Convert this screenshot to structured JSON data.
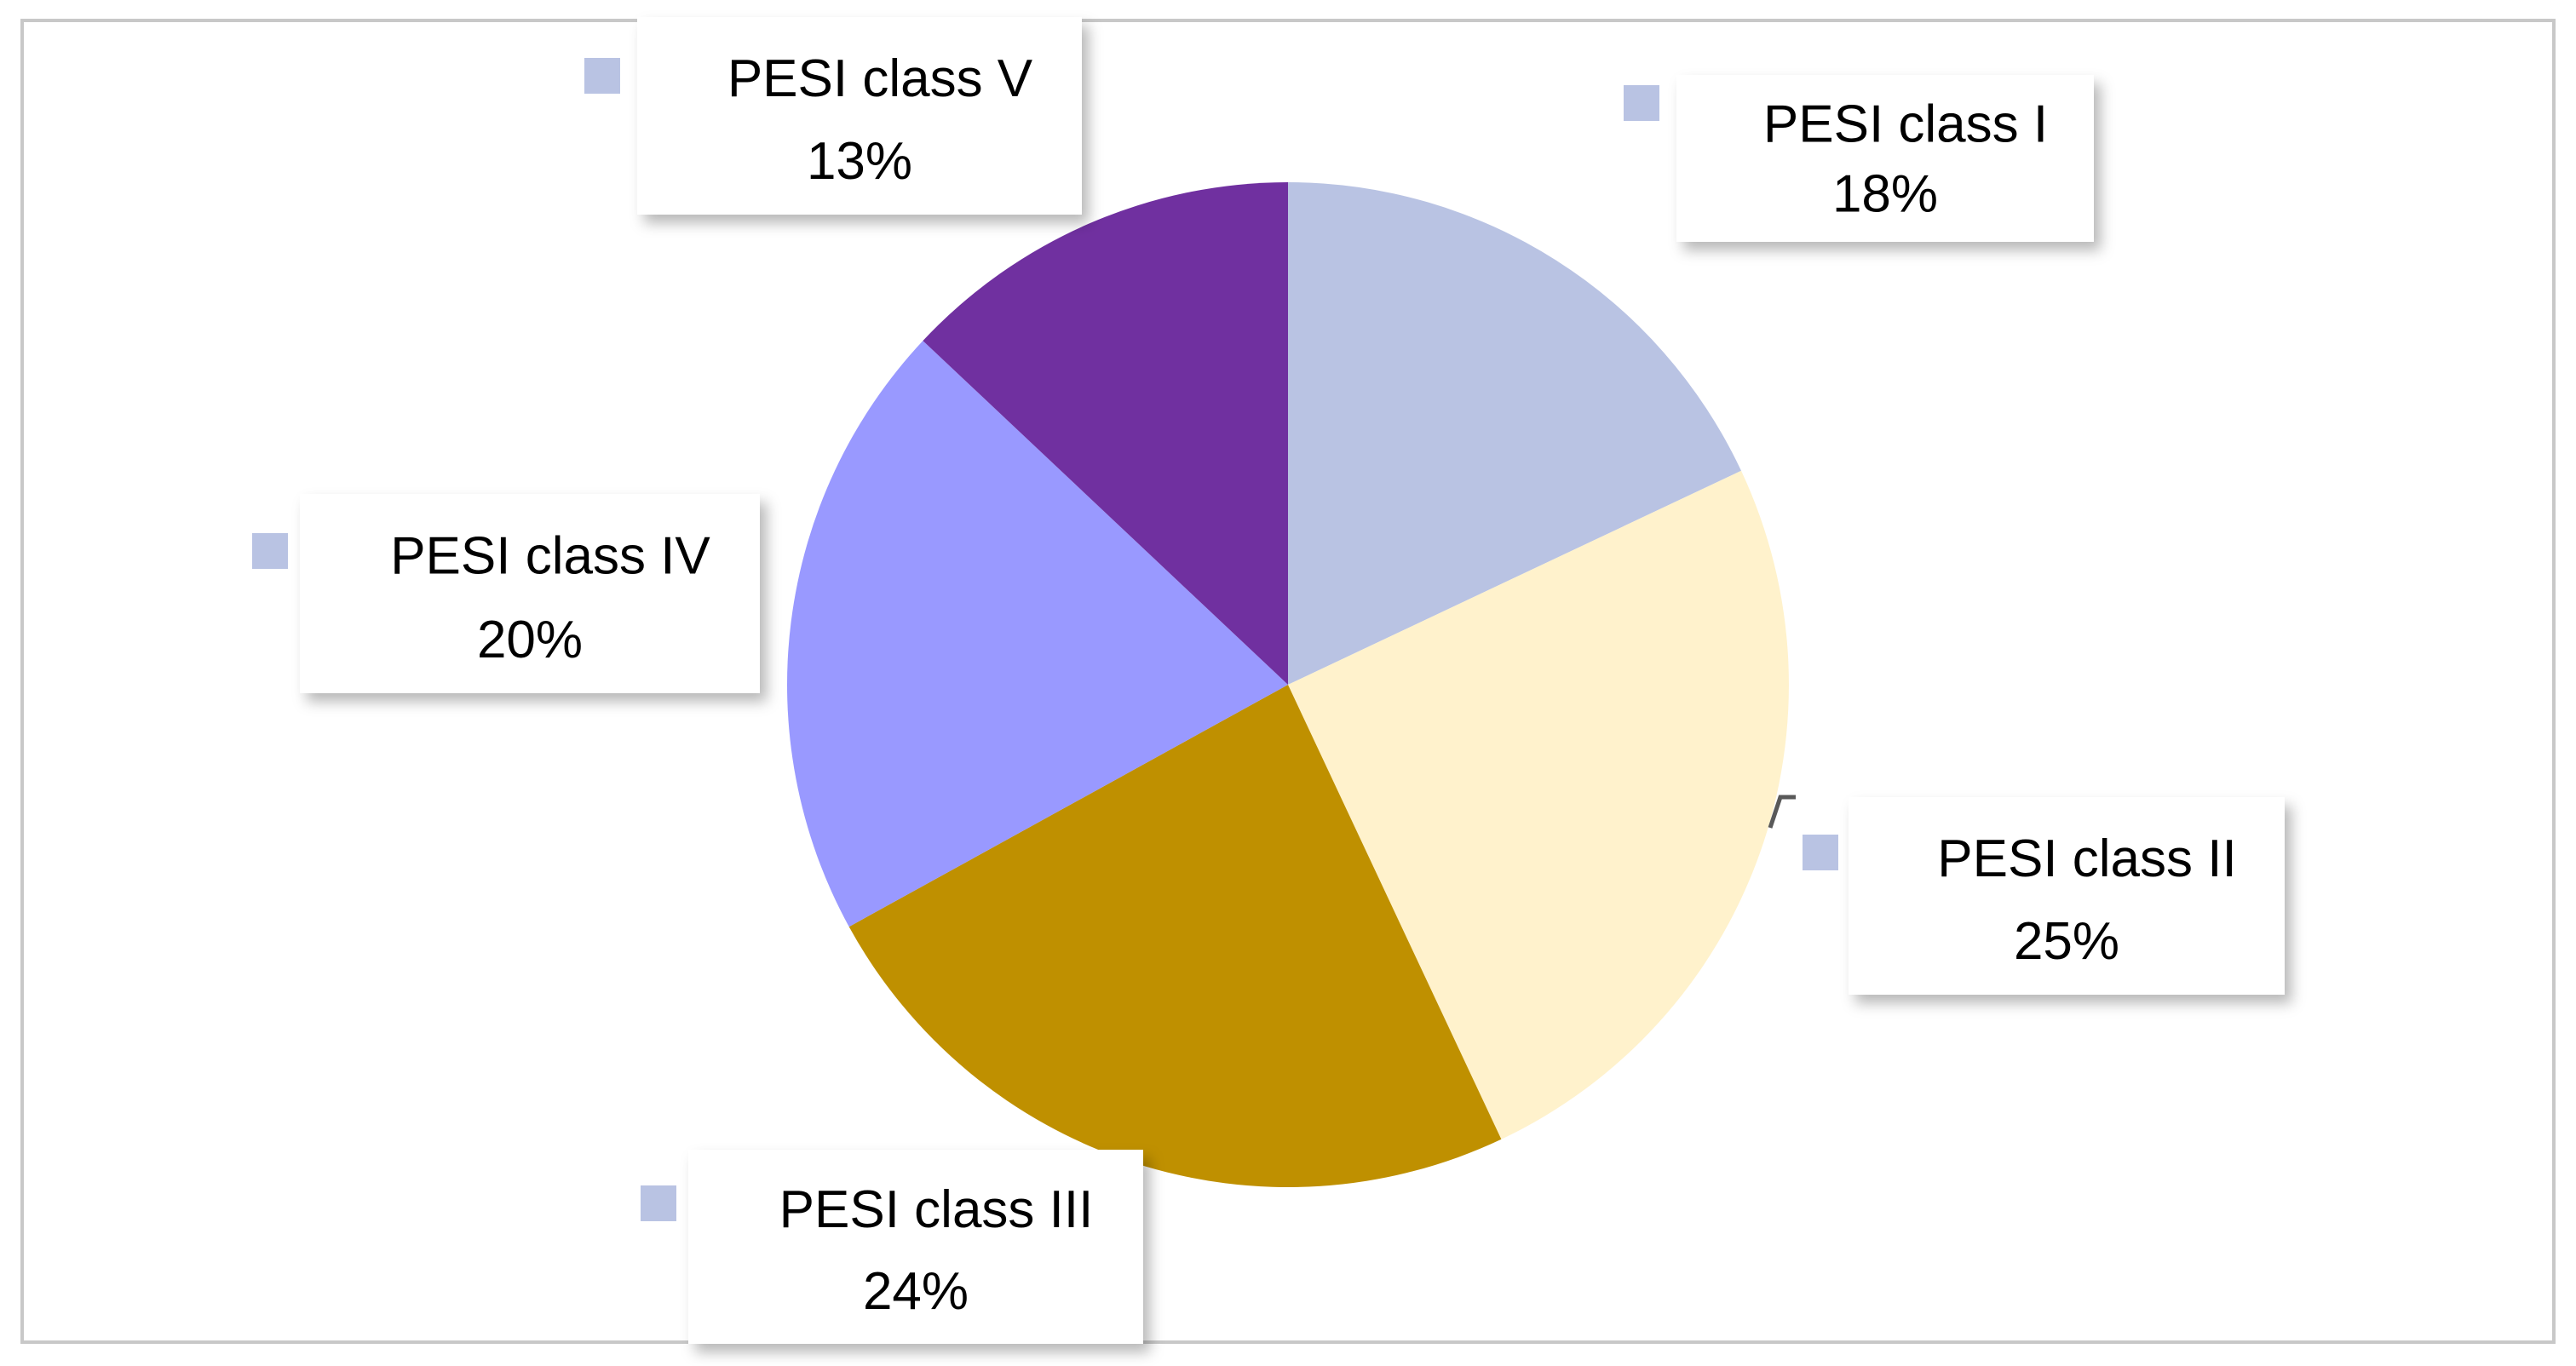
{
  "chart_data": {
    "type": "pie",
    "title": "",
    "legend": "none",
    "start_angle_deg": 0,
    "direction": "clockwise",
    "slices": [
      {
        "label": "PESI class I",
        "value_text": "18%",
        "value": 18,
        "color": "#b9c3e3"
      },
      {
        "label": "PESI class II",
        "value_text": "25%",
        "value": 25,
        "color": "#fff2cc"
      },
      {
        "label": "PESI class III",
        "value_text": "24%",
        "value": 24,
        "color": "#bf9000"
      },
      {
        "label": "PESI class IV",
        "value_text": "20%",
        "value": 20,
        "color": "#9999ff"
      },
      {
        "label": "PESI class V",
        "value_text": "13%",
        "value": 13,
        "color": "#7030a0"
      }
    ],
    "marker_color": "#b9c3e3"
  }
}
